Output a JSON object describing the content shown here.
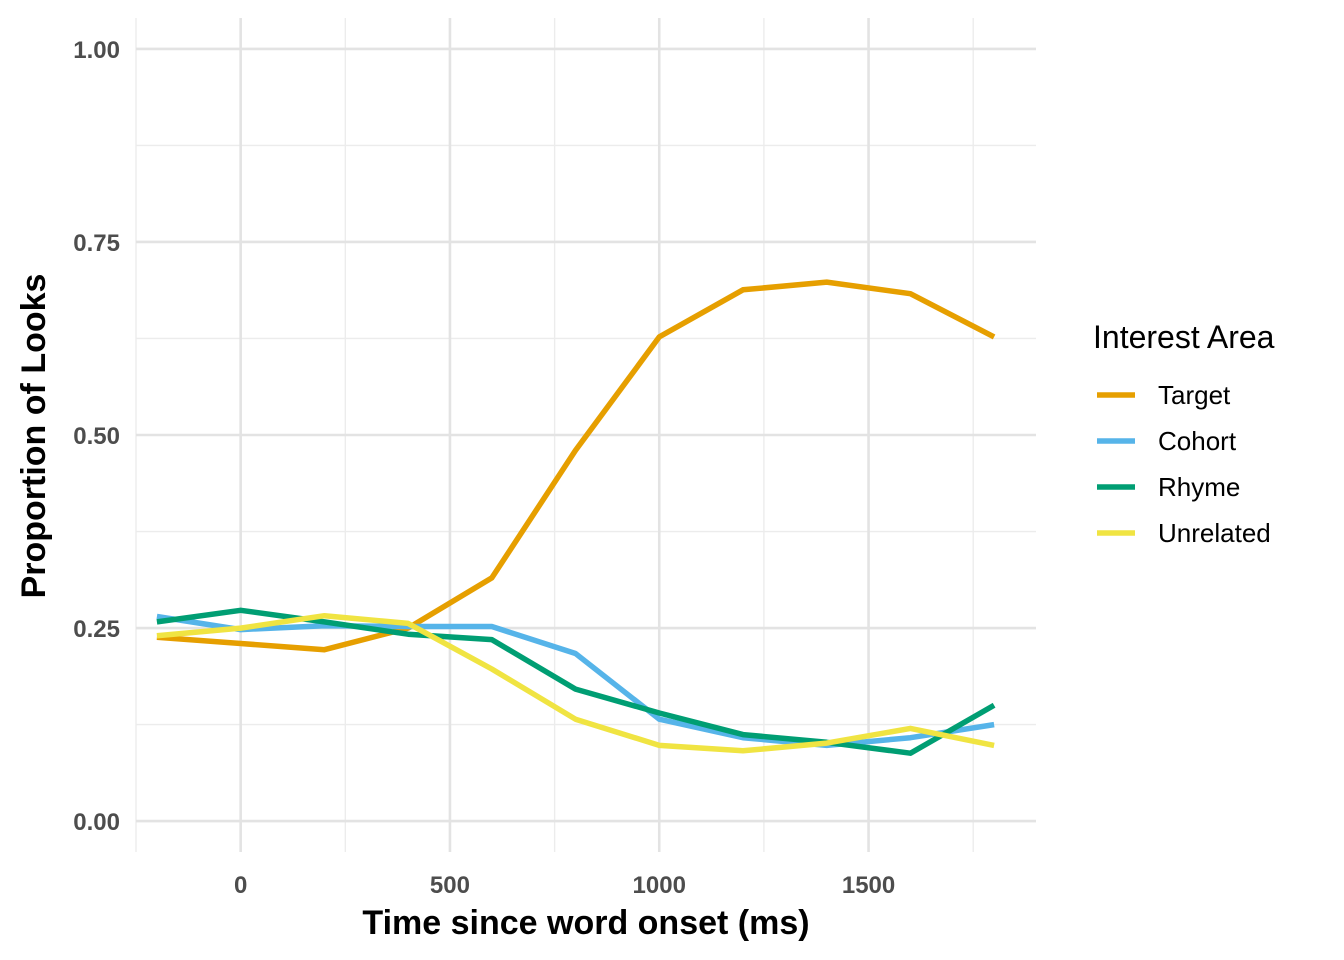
{
  "chart_data": {
    "type": "line",
    "title": "",
    "xlabel": "Time since word onset (ms)",
    "ylabel": "Proportion of Looks",
    "xlim": [
      -250,
      1900
    ],
    "ylim": [
      -0.04,
      1.04
    ],
    "x_ticks": [
      0,
      500,
      1000,
      1500
    ],
    "x_tick_labels": [
      "0",
      "500",
      "1000",
      "1500"
    ],
    "x_minor_ticks": [
      -250,
      250,
      750,
      1250,
      1750
    ],
    "y_ticks": [
      0,
      0.25,
      0.5,
      0.75,
      1.0
    ],
    "y_tick_labels": [
      "0.00",
      "0.25",
      "0.50",
      "0.75",
      "1.00"
    ],
    "y_minor_ticks": [
      0.125,
      0.375,
      0.625,
      0.875
    ],
    "grid": true,
    "legend": {
      "title": "Interest Area",
      "position": "right"
    },
    "x": [
      -200,
      0,
      200,
      400,
      600,
      800,
      1000,
      1200,
      1400,
      1600,
      1800
    ],
    "series": [
      {
        "name": "Target",
        "color": "#E69F00",
        "values": [
          0.238,
          0.23,
          0.222,
          0.25,
          0.315,
          0.48,
          0.627,
          0.688,
          0.698,
          0.683,
          0.627
        ]
      },
      {
        "name": "Cohort",
        "color": "#56B4E9",
        "values": [
          0.265,
          0.248,
          0.253,
          0.252,
          0.252,
          0.217,
          0.132,
          0.108,
          0.098,
          0.108,
          0.125
        ]
      },
      {
        "name": "Rhyme",
        "color": "#009E73",
        "values": [
          0.258,
          0.273,
          0.258,
          0.242,
          0.235,
          0.171,
          0.14,
          0.112,
          0.102,
          0.088,
          0.15
        ]
      },
      {
        "name": "Unrelated",
        "color": "#F0E442",
        "values": [
          0.24,
          0.25,
          0.266,
          0.256,
          0.197,
          0.132,
          0.098,
          0.091,
          0.101,
          0.12,
          0.098
        ]
      }
    ]
  }
}
